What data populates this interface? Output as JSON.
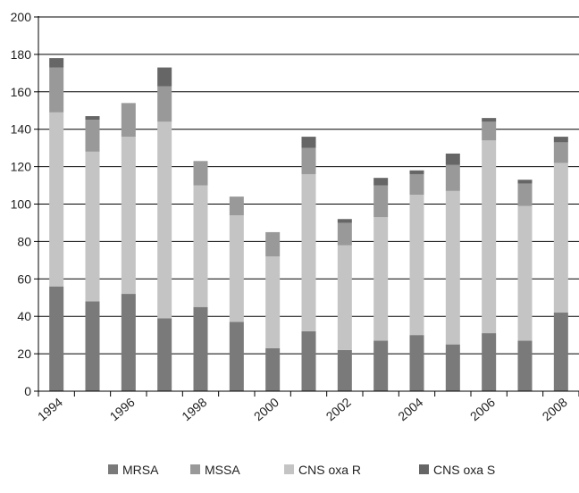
{
  "chart_data": {
    "type": "bar",
    "stacked": true,
    "x": [
      1994,
      1995,
      1996,
      1997,
      1998,
      1999,
      2000,
      2001,
      2002,
      2003,
      2004,
      2005,
      2006,
      2007,
      2008
    ],
    "x_tick_labels": [
      "1994",
      "",
      "1996",
      "",
      "1998",
      "",
      "2000",
      "",
      "2002",
      "",
      "2004",
      "",
      "2006",
      "",
      "2008"
    ],
    "series": [
      {
        "name": "MRSA",
        "color": "#7a7a7a",
        "values": [
          56,
          48,
          52,
          39,
          45,
          37,
          23,
          32,
          22,
          27,
          30,
          25,
          31,
          27,
          42
        ]
      },
      {
        "name": "CNS oxa R",
        "color": "#c4c4c4",
        "values": [
          93,
          80,
          84,
          105,
          65,
          57,
          49,
          84,
          56,
          66,
          75,
          82,
          103,
          72,
          80
        ]
      },
      {
        "name": "MSSA",
        "color": "#999999",
        "values": [
          24,
          17,
          18,
          19,
          13,
          10,
          13,
          14,
          12,
          17,
          11,
          14,
          10,
          12,
          11
        ]
      },
      {
        "name": "CNS oxa S",
        "color": "#666666",
        "values": [
          5,
          2,
          0,
          10,
          0,
          0,
          0,
          6,
          2,
          4,
          2,
          6,
          2,
          2,
          3
        ]
      }
    ],
    "legend": [
      "MRSA",
      "MSSA",
      "CNS oxa R",
      "CNS oxa S"
    ],
    "legend_position": "bottom",
    "ylim": [
      0,
      200
    ],
    "yticks": [
      0,
      20,
      40,
      60,
      80,
      100,
      120,
      140,
      160,
      180,
      200
    ],
    "grid": "horizontal",
    "title": "",
    "xlabel": "",
    "ylabel": ""
  }
}
